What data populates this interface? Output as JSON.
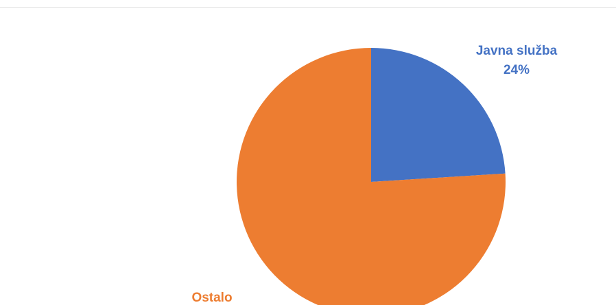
{
  "chart_data": {
    "type": "pie",
    "title": "",
    "slices": [
      {
        "label": "Javna služba",
        "value": 24,
        "value_label": "24%",
        "color": "#4472C4"
      },
      {
        "label": "Ostalo",
        "value": 76,
        "value_label": "",
        "color": "#ED7D31"
      }
    ],
    "start_angle": "12 o'clock",
    "direction": "clockwise",
    "legend": "none"
  }
}
